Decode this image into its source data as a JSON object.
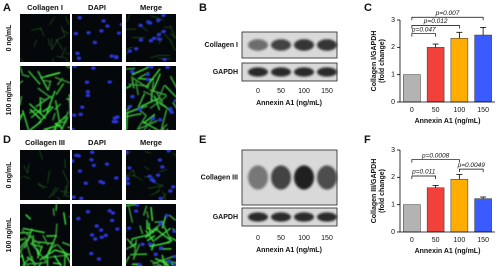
{
  "panels": {
    "a": "A",
    "b": "B",
    "c": "C",
    "d": "D",
    "e": "E",
    "f": "F"
  },
  "microscopy_top": {
    "headers": [
      "Collagen I",
      "DAPI",
      "Merge"
    ],
    "rows": [
      "0 ng/mL",
      "100 ng/mL"
    ]
  },
  "microscopy_bottom": {
    "headers": [
      "Collagen III",
      "DAPI",
      "Merge"
    ],
    "rows": [
      "0 ng/mL",
      "100 ng/mL"
    ]
  },
  "blot_top": {
    "bands": [
      "Collagen I",
      "GAPDH"
    ],
    "lanes": [
      "0",
      "50",
      "100",
      "150"
    ],
    "xlabel": "Annexin A1 (ng/mL)"
  },
  "blot_bottom": {
    "bands": [
      "Collagen III",
      "GAPDH"
    ],
    "lanes": [
      "0",
      "50",
      "100",
      "150"
    ],
    "xlabel": "Annexin A1 (ng/mL)"
  },
  "chart_data": [
    {
      "type": "bar",
      "categories": [
        "0",
        "50",
        "100",
        "150"
      ],
      "values": [
        1,
        2.0,
        2.33,
        2.45
      ],
      "errors": [
        0,
        0.12,
        0.22,
        0.28
      ],
      "colors": [
        "#b3b3b3",
        "#f0413a",
        "#ffad00",
        "#3a5bff"
      ],
      "ylim": [
        0,
        3
      ],
      "yticks": [
        0,
        1,
        2,
        3
      ],
      "xlabel": "Annexin A1 (ng/mL)",
      "ylabel": [
        "Collagen I/GAPDH",
        "(fold change)"
      ],
      "annotations": [
        "p=0.047",
        "p=0.012",
        "p=0.007"
      ]
    },
    {
      "type": "bar",
      "categories": [
        "0",
        "50",
        "100",
        "150"
      ],
      "values": [
        1,
        1.62,
        1.93,
        1.22
      ],
      "errors": [
        0,
        0.08,
        0.17,
        0.06
      ],
      "colors": [
        "#b3b3b3",
        "#f0413a",
        "#ffad00",
        "#3a5bff"
      ],
      "ylim": [
        0,
        3
      ],
      "yticks": [
        0,
        1,
        2,
        3
      ],
      "xlabel": "Annexin A1 (ng/mL)",
      "ylabel": [
        "Collagen III/GAPDH",
        "(fold change)"
      ],
      "annotations": [
        "p=0.011",
        "p=0.0008",
        "p=0.0049"
      ]
    }
  ]
}
